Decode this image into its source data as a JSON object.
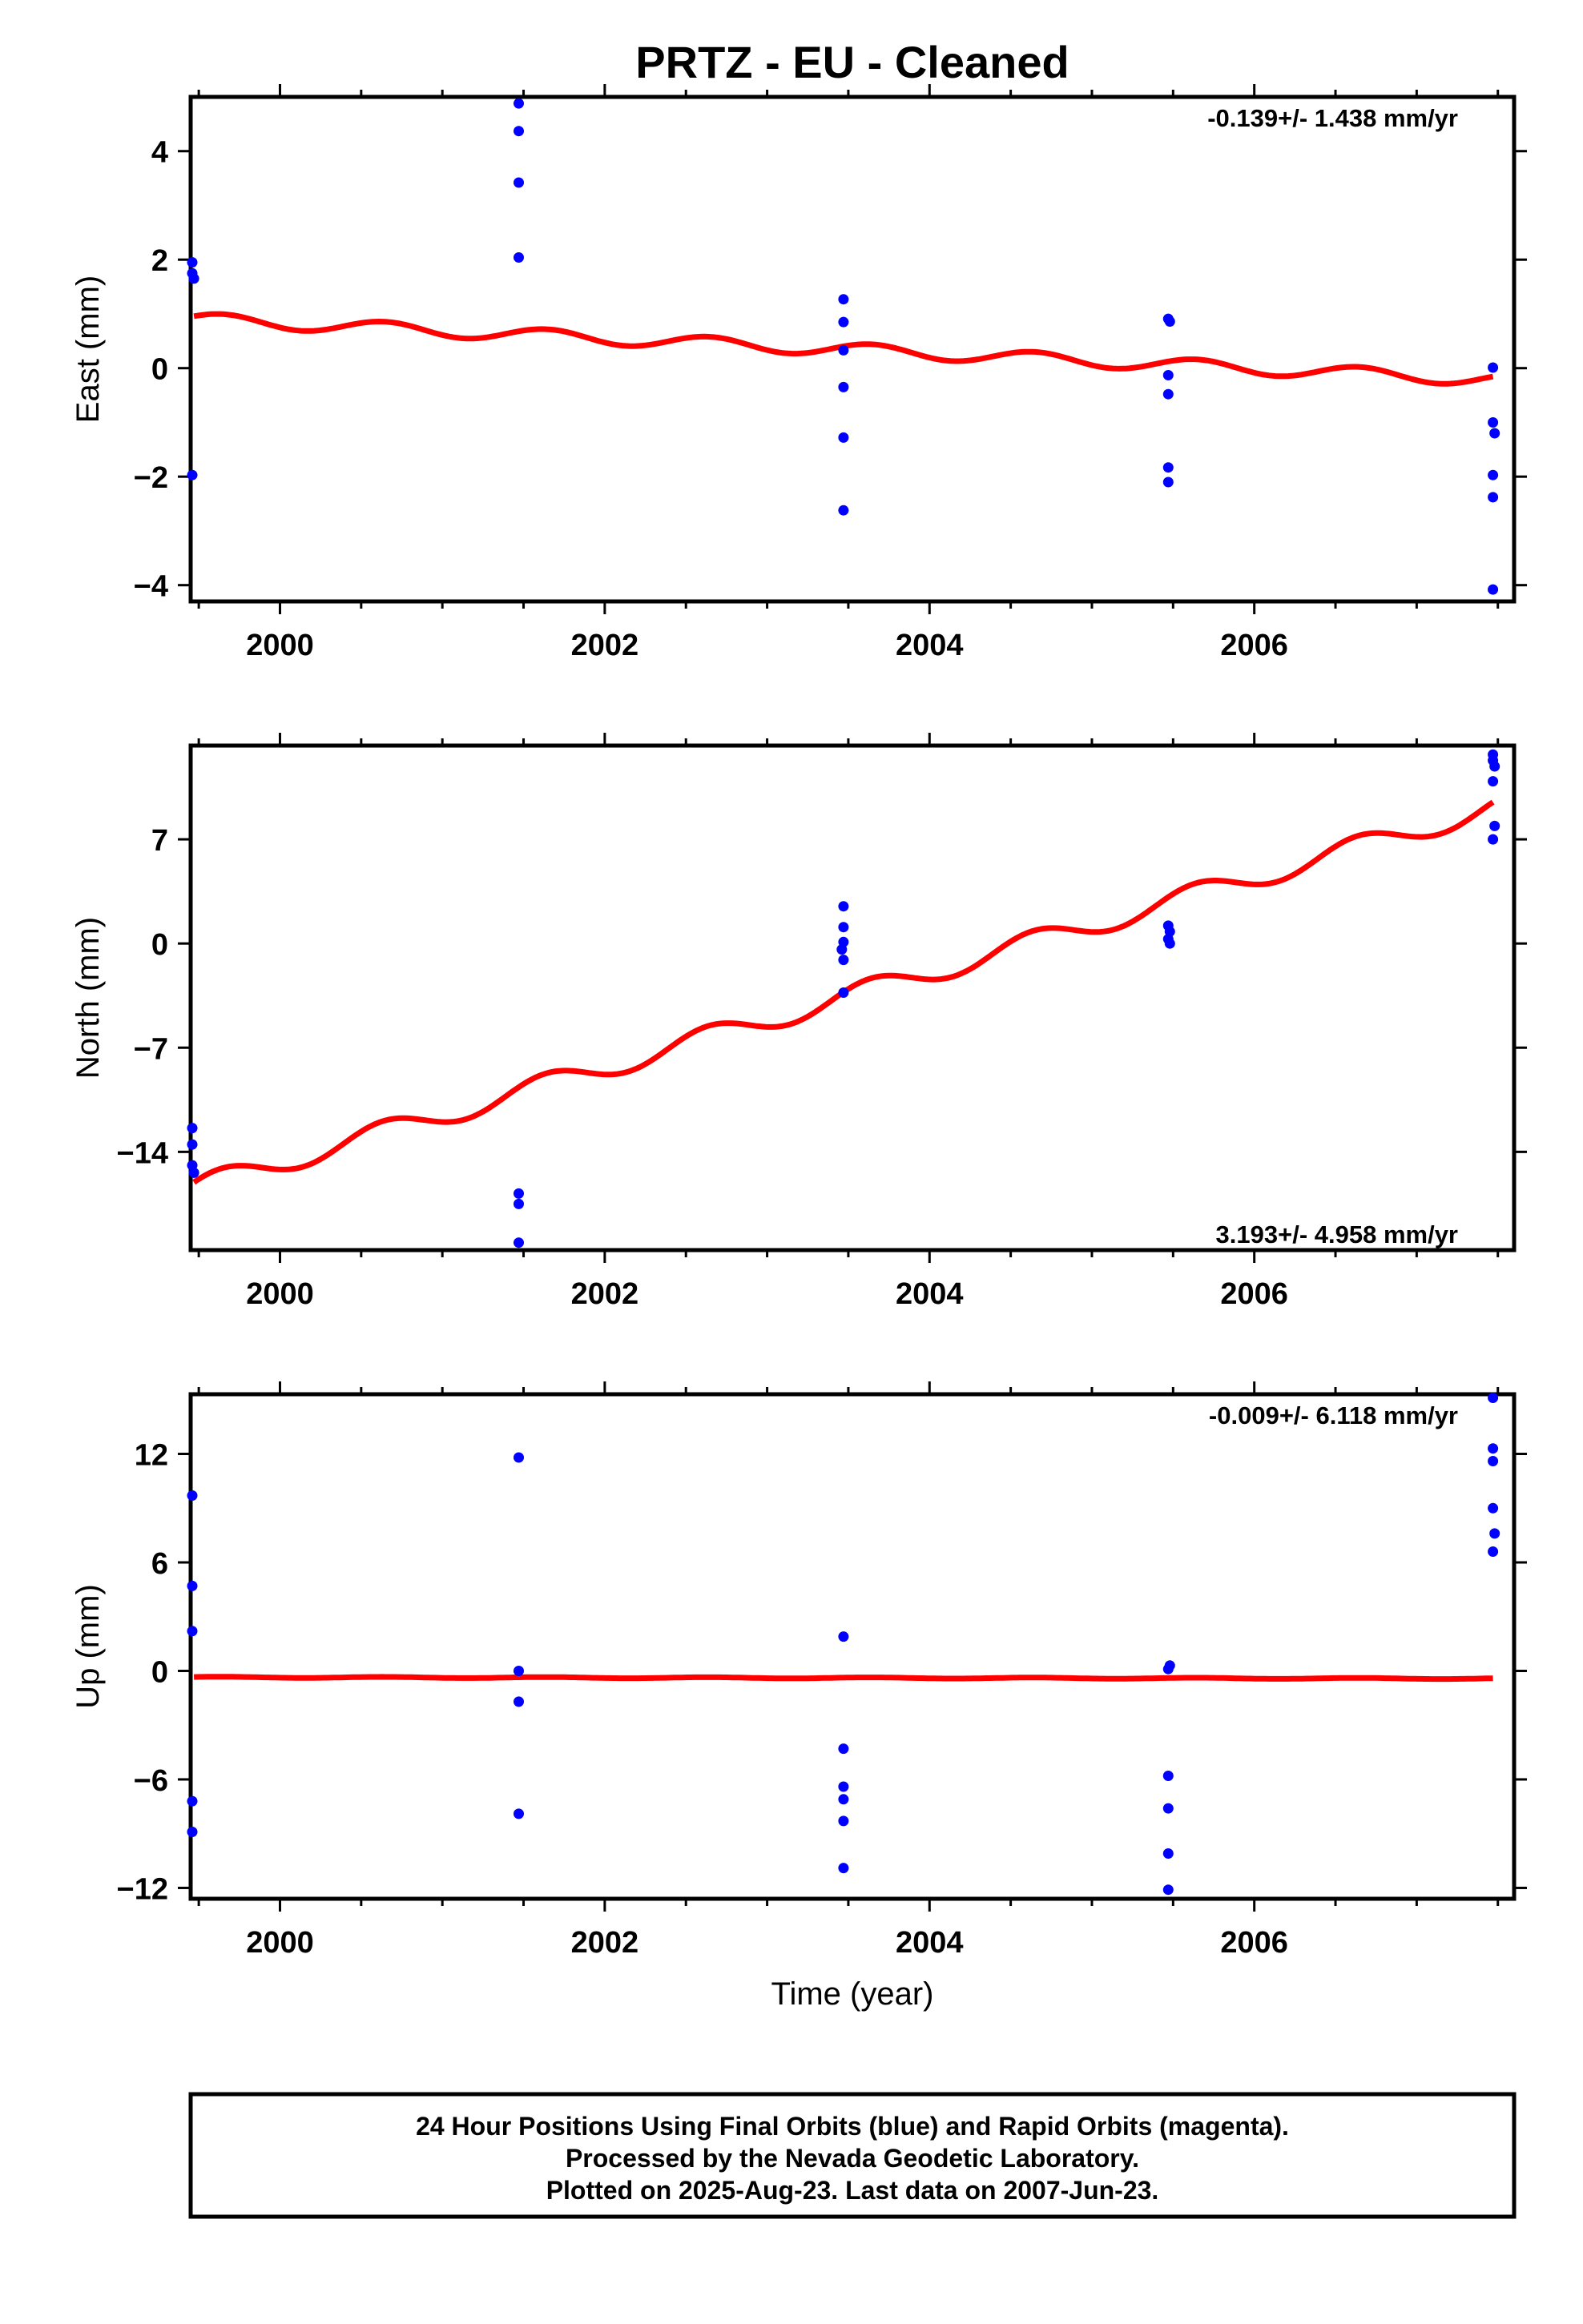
{
  "title": "PRTZ  - EU - Cleaned",
  "xlabel": "Time (year)",
  "colors": {
    "points": "#0000ff",
    "model": "#ff0000",
    "frame": "#000000"
  },
  "footer": {
    "lines": [
      "24 Hour Positions Using Final Orbits (blue) and Rapid Orbits (magenta).",
      "Processed by the Nevada Geodetic Laboratory.",
      "Plotted on 2025-Aug-23. Last data on 2007-Jun-23."
    ]
  },
  "chart_data": [
    {
      "type": "scatter",
      "name": "east",
      "ylabel": "East (mm)",
      "rate_label": "-0.139+/- 1.438 mm/yr",
      "xlim": [
        1999.45,
        2007.6
      ],
      "ylim": [
        -4.3,
        5.0
      ],
      "xticks": [
        2000,
        2002,
        2004,
        2006
      ],
      "xtick_labels": [
        "2000",
        "2002",
        "2004",
        "2006"
      ],
      "yticks": [
        -4,
        -2,
        0,
        2,
        4
      ],
      "ytick_labels": [
        "−4",
        "−2",
        "0",
        "2",
        "4"
      ],
      "points": [
        [
          1999.46,
          1.95
        ],
        [
          1999.46,
          1.75
        ],
        [
          1999.47,
          1.65
        ],
        [
          1999.46,
          -1.97
        ],
        [
          2001.47,
          4.88
        ],
        [
          2001.47,
          4.37
        ],
        [
          2001.47,
          3.42
        ],
        [
          2001.47,
          2.04
        ],
        [
          2003.47,
          1.27
        ],
        [
          2003.47,
          0.85
        ],
        [
          2003.47,
          0.33
        ],
        [
          2003.47,
          -0.35
        ],
        [
          2003.47,
          -1.28
        ],
        [
          2003.47,
          -2.62
        ],
        [
          2005.47,
          0.91
        ],
        [
          2005.48,
          0.86
        ],
        [
          2005.47,
          -0.13
        ],
        [
          2005.47,
          -0.48
        ],
        [
          2005.47,
          -1.83
        ],
        [
          2005.47,
          -2.1
        ],
        [
          2007.47,
          0.01
        ],
        [
          2007.47,
          -1.0
        ],
        [
          2007.48,
          -1.2
        ],
        [
          2007.47,
          -1.97
        ],
        [
          2007.47,
          -2.38
        ],
        [
          2007.47,
          -4.08
        ]
      ],
      "model": {
        "t0": 1999.47,
        "t1": 2007.47,
        "a": 0.9,
        "b": -0.139,
        "amp": 0.12,
        "phase": 0.5
      }
    },
    {
      "type": "scatter",
      "name": "north",
      "ylabel": "North (mm)",
      "rate_label": "3.193+/- 4.958 mm/yr",
      "xlim": [
        1999.45,
        2007.6
      ],
      "ylim": [
        -20.6,
        13.3
      ],
      "xticks": [
        2000,
        2002,
        2004,
        2006
      ],
      "xtick_labels": [
        "2000",
        "2002",
        "2004",
        "2006"
      ],
      "yticks": [
        -14,
        -7,
        0,
        7
      ],
      "ytick_labels": [
        "−14",
        "−7",
        "0",
        "7"
      ],
      "points": [
        [
          1999.46,
          -12.4
        ],
        [
          1999.46,
          -13.5
        ],
        [
          1999.46,
          -14.9
        ],
        [
          1999.47,
          -15.4
        ],
        [
          2001.47,
          -16.8
        ],
        [
          2001.47,
          -17.5
        ],
        [
          2001.47,
          -20.1
        ],
        [
          2003.47,
          2.5
        ],
        [
          2003.47,
          1.1
        ],
        [
          2003.47,
          0.1
        ],
        [
          2003.46,
          -0.4
        ],
        [
          2003.47,
          -1.1
        ],
        [
          2003.47,
          -3.3
        ],
        [
          2005.47,
          1.2
        ],
        [
          2005.48,
          0.8
        ],
        [
          2005.47,
          0.3
        ],
        [
          2005.48,
          0.0
        ],
        [
          2007.47,
          12.7
        ],
        [
          2007.47,
          12.3
        ],
        [
          2007.48,
          11.9
        ],
        [
          2007.47,
          10.9
        ],
        [
          2007.48,
          7.9
        ],
        [
          2007.47,
          7.0
        ]
      ],
      "model": {
        "t0": 1999.47,
        "t1": 2007.47,
        "a": -16.4,
        "b": 3.193,
        "amp": 0.75,
        "phase": 0.5
      }
    },
    {
      "type": "scatter",
      "name": "up",
      "ylabel": "Up (mm)",
      "rate_label": "-0.009+/- 6.118 mm/yr",
      "xlim": [
        1999.45,
        2007.6
      ],
      "ylim": [
        -12.6,
        15.3
      ],
      "xticks": [
        2000,
        2002,
        2004,
        2006
      ],
      "xtick_labels": [
        "2000",
        "2002",
        "2004",
        "2006"
      ],
      "yticks": [
        -12,
        -6,
        0,
        6,
        12
      ],
      "ytick_labels": [
        "−12",
        "−6",
        "0",
        "6",
        "12"
      ],
      "points": [
        [
          1999.46,
          9.7
        ],
        [
          1999.46,
          4.7
        ],
        [
          1999.46,
          2.2
        ],
        [
          1999.46,
          -7.2
        ],
        [
          1999.46,
          -8.9
        ],
        [
          2001.47,
          11.8
        ],
        [
          2001.47,
          0.0
        ],
        [
          2001.47,
          -1.7
        ],
        [
          2001.47,
          -7.9
        ],
        [
          2003.47,
          1.9
        ],
        [
          2003.47,
          -4.3
        ],
        [
          2003.47,
          -6.4
        ],
        [
          2003.47,
          -7.1
        ],
        [
          2003.47,
          -8.3
        ],
        [
          2003.47,
          -10.9
        ],
        [
          2005.48,
          0.3
        ],
        [
          2005.47,
          0.1
        ],
        [
          2005.47,
          -5.8
        ],
        [
          2005.47,
          -7.6
        ],
        [
          2005.47,
          -10.1
        ],
        [
          2005.47,
          -12.1
        ],
        [
          2007.47,
          15.1
        ],
        [
          2007.47,
          12.3
        ],
        [
          2007.47,
          11.6
        ],
        [
          2007.47,
          9.0
        ],
        [
          2007.48,
          7.6
        ],
        [
          2007.47,
          6.6
        ]
      ],
      "model": {
        "t0": 1999.47,
        "t1": 2007.47,
        "a": -0.35,
        "b": -0.009,
        "amp": 0.03,
        "phase": 0.5
      }
    }
  ]
}
